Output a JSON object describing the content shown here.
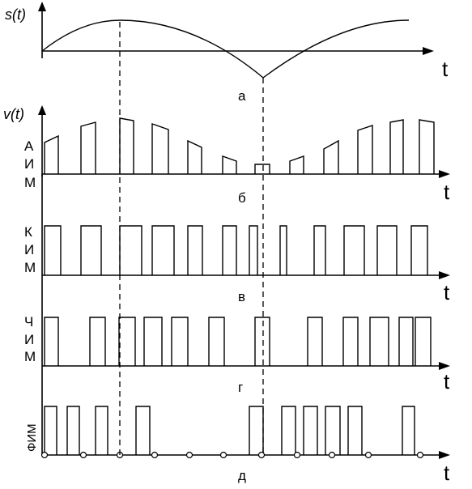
{
  "labels": {
    "s_axis": "s(t)",
    "v_axis": "v(t)",
    "t": "t",
    "a": "а",
    "b": "б",
    "v": "в",
    "g": "г",
    "d": "д"
  },
  "side_labels": {
    "aim": [
      "А",
      "И",
      "М"
    ],
    "kim": [
      "К",
      "И",
      "М"
    ],
    "chim": [
      "Ч",
      "И",
      "М"
    ],
    "fim": "ФИМ"
  }
}
